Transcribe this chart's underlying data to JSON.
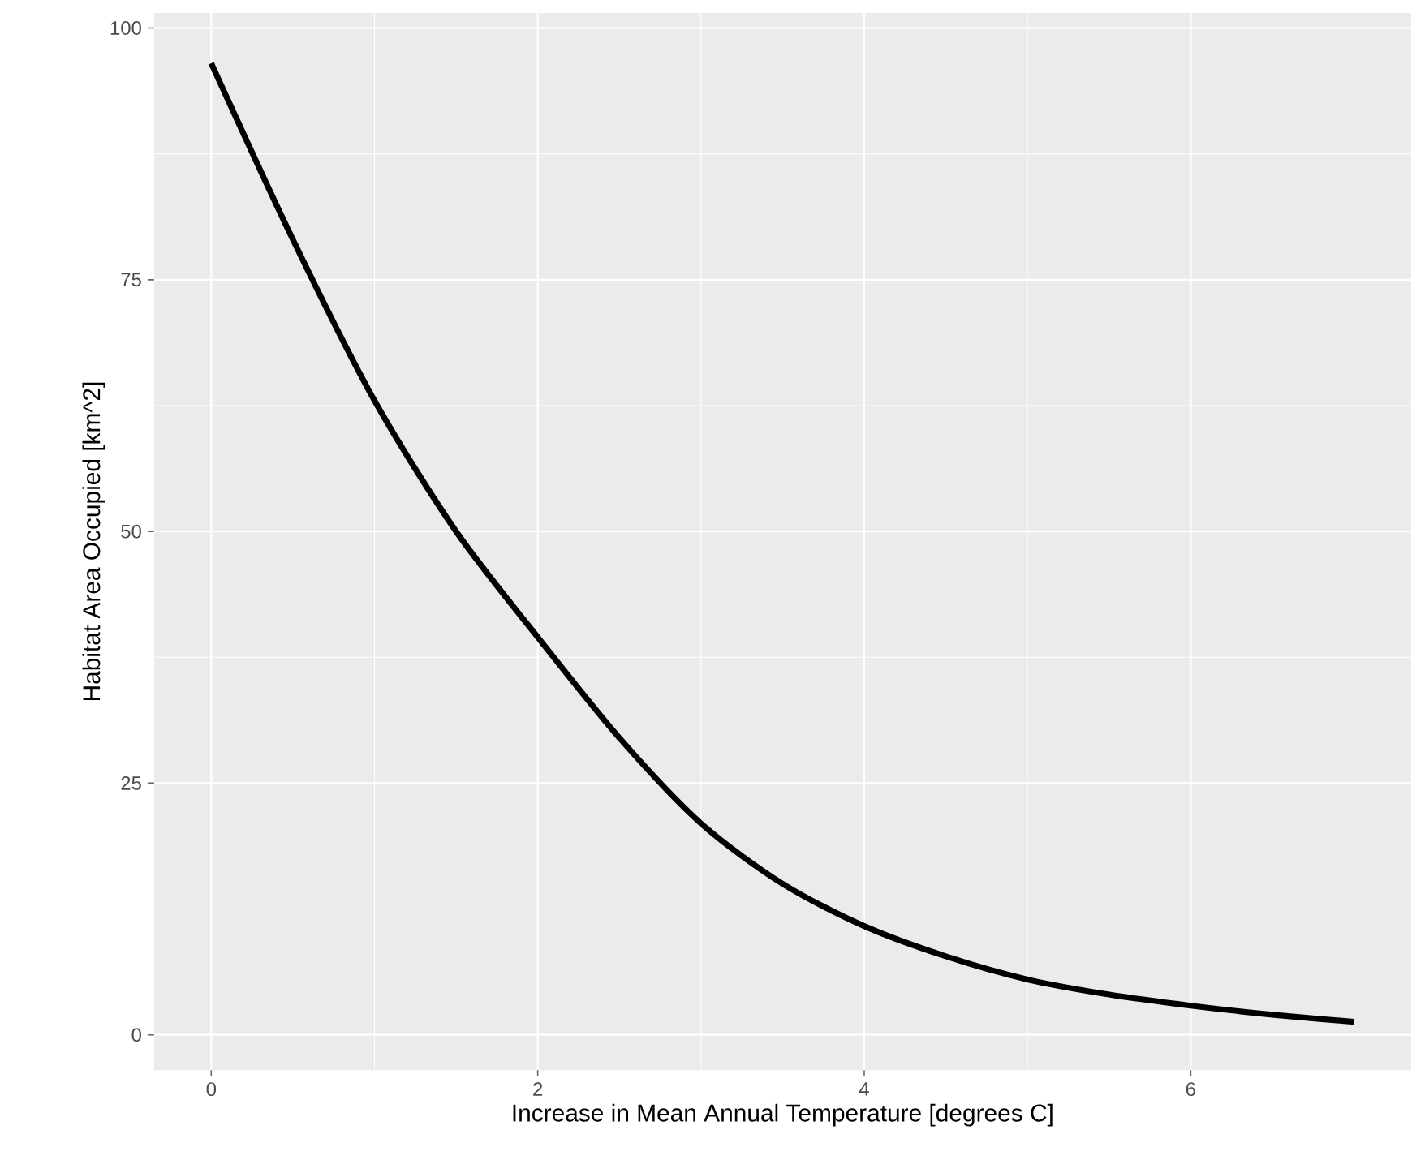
{
  "chart_data": {
    "type": "line",
    "xlabel": "Increase in Mean Annual Temperature [degrees C]",
    "ylabel": "Habitat Area Occupied [km^2]",
    "x": [
      0,
      0.5,
      1,
      1.5,
      2,
      2.5,
      3,
      3.5,
      4,
      4.5,
      5,
      5.5,
      6,
      6.5,
      7
    ],
    "series": [
      {
        "color": "#000000",
        "values": [
          96.5,
          79,
          63,
          50,
          39.5,
          29.5,
          21,
          15,
          10.8,
          7.8,
          5.5,
          4,
          2.9,
          2,
          1.3
        ]
      }
    ],
    "xlim": [
      -0.35,
      7.35
    ],
    "ylim": [
      -3.5,
      101.5
    ],
    "xticks": [
      0,
      2,
      4,
      6
    ],
    "yticks": [
      0,
      25,
      50,
      75,
      100
    ],
    "grid": true,
    "marker": "none",
    "line_style": "solid"
  }
}
